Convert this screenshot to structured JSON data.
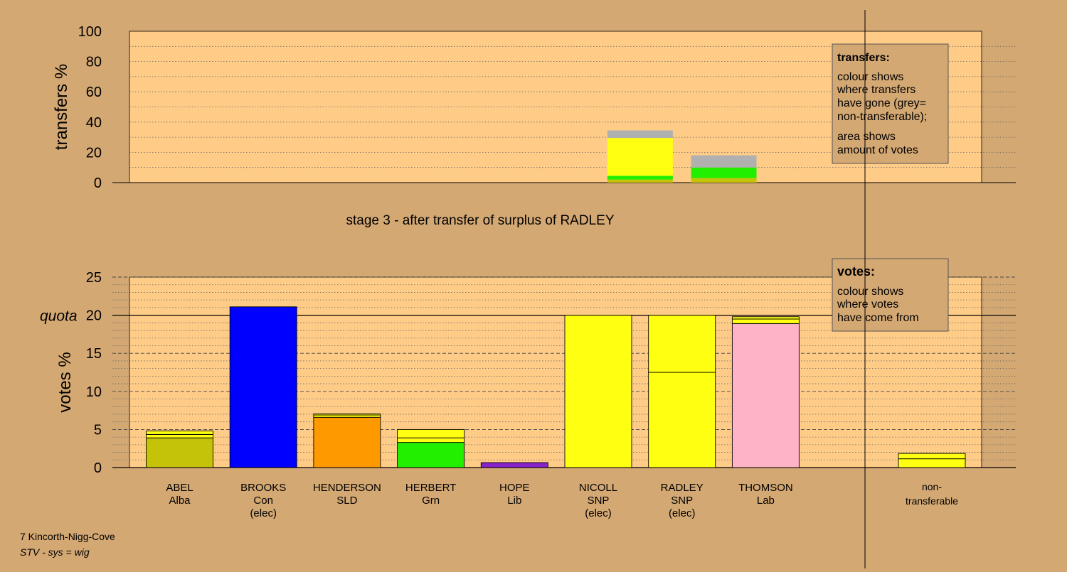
{
  "colors": {
    "background": "#d4a873",
    "panel": "#ffcc88",
    "Alba": "#c5c20a",
    "Con": "#0000ff",
    "SLD": "#ff9900",
    "Grn": "#22ee00",
    "Lib": "#8822cc",
    "SNP": "#ffff11",
    "Lab": "#ffb3c6",
    "non_transferable": "#b0b0b0"
  },
  "footer": {
    "line1": "7 Kincorth-Nigg-Cove",
    "line2": "STV - sys = wig"
  },
  "chart_data": [
    {
      "type": "bar",
      "ylabel": "transfers %",
      "ylim": [
        0,
        100
      ],
      "yticks": [
        0,
        20,
        40,
        60,
        80,
        100
      ],
      "grid": "dotted",
      "legend": {
        "placement": "top-right",
        "title": "transfers:",
        "lines": [
          "colour shows",
          "where transfers",
          "have gone (grey=",
          "non-transferable);",
          "area shows",
          "amount of votes"
        ]
      },
      "bars": [
        {
          "x_index": 5.5,
          "segments": [
            {
              "party": "Alba",
              "value": 2
            },
            {
              "party": "Grn",
              "value": 2.5
            },
            {
              "party": "SNP",
              "value": 25
            },
            {
              "party": "non_transferable",
              "value": 1.5
            },
            {
              "party": "non_transferable",
              "value": 3.5
            }
          ]
        },
        {
          "x_index": 6.5,
          "segments": [
            {
              "party": "Alba",
              "value": 3
            },
            {
              "party": "Grn",
              "value": 7
            },
            {
              "party": "non_transferable",
              "value": 2
            },
            {
              "party": "non_transferable",
              "value": 6
            }
          ]
        }
      ]
    },
    {
      "type": "bar",
      "title": "stage 3 - after transfer of surplus of RADLEY",
      "ylabel": "votes %",
      "ylim": [
        0,
        25
      ],
      "yticks": [
        0,
        5,
        10,
        15,
        20,
        25
      ],
      "quota": {
        "value": 20,
        "label": "quota"
      },
      "grid": "dotted",
      "legend": {
        "placement": "top-right",
        "title": "votes:",
        "lines": [
          "colour shows",
          "where votes",
          "have come from"
        ]
      },
      "categories": [
        {
          "name": "ABEL",
          "party": "Alba",
          "status": "",
          "segments": [
            {
              "party": "Alba",
              "value": 3.9
            },
            {
              "party": "SNP",
              "value": 0.45
            },
            {
              "party": "SNP",
              "value": 0.45
            }
          ]
        },
        {
          "name": "BROOKS",
          "party": "Con",
          "status": "(elec)",
          "segments": [
            {
              "party": "Con",
              "value": 21.1
            }
          ]
        },
        {
          "name": "HENDERSON",
          "party": "SLD",
          "status": "",
          "segments": [
            {
              "party": "SLD",
              "value": 6.6
            },
            {
              "party": "SNP",
              "value": 0.3
            },
            {
              "party": "SNP",
              "value": 0.15
            }
          ]
        },
        {
          "name": "HERBERT",
          "party": "Grn",
          "status": "",
          "segments": [
            {
              "party": "Grn",
              "value": 3.3
            },
            {
              "party": "SNP",
              "value": 0.6
            },
            {
              "party": "SNP",
              "value": 1.1
            }
          ]
        },
        {
          "name": "HOPE",
          "party": "Lib",
          "status": "",
          "segments": [
            {
              "party": "Lib",
              "value": 0.65
            }
          ]
        },
        {
          "name": "NICOLL",
          "party": "SNP",
          "status": "(elec)",
          "segments": [
            {
              "party": "SNP",
              "value": 20.0
            }
          ]
        },
        {
          "name": "RADLEY",
          "party": "SNP",
          "status": "(elec)",
          "segments": [
            {
              "party": "SNP",
              "value": 12.5
            },
            {
              "party": "SNP",
              "value": 7.5
            }
          ]
        },
        {
          "name": "THOMSON",
          "party": "Lab",
          "status": "",
          "segments": [
            {
              "party": "Lab",
              "value": 18.9
            },
            {
              "party": "SNP",
              "value": 0.6
            },
            {
              "party": "SNP",
              "value": 0.3
            }
          ]
        }
      ],
      "non_transferable": {
        "label_line1": "non-",
        "label_line2": "transferable",
        "segments": [
          {
            "party": "SNP",
            "value": 1.15
          },
          {
            "party": "SNP",
            "value": 0.7
          }
        ]
      }
    }
  ]
}
